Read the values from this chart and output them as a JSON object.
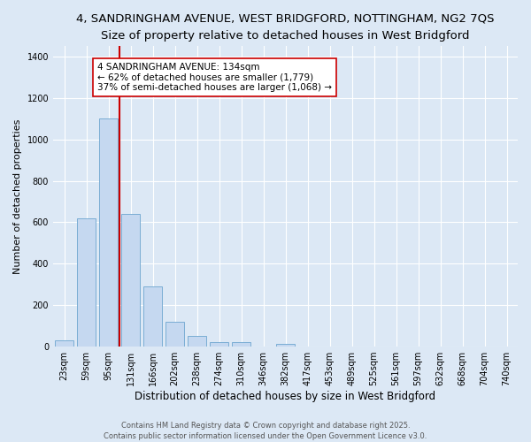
{
  "title1": "4, SANDRINGHAM AVENUE, WEST BRIDGFORD, NOTTINGHAM, NG2 7QS",
  "title2": "Size of property relative to detached houses in West Bridgford",
  "xlabel": "Distribution of detached houses by size in West Bridgford",
  "ylabel": "Number of detached properties",
  "categories": [
    "23sqm",
    "59sqm",
    "95sqm",
    "131sqm",
    "166sqm",
    "202sqm",
    "238sqm",
    "274sqm",
    "310sqm",
    "346sqm",
    "382sqm",
    "417sqm",
    "453sqm",
    "489sqm",
    "525sqm",
    "561sqm",
    "597sqm",
    "632sqm",
    "668sqm",
    "704sqm",
    "740sqm"
  ],
  "values": [
    30,
    620,
    1100,
    640,
    290,
    120,
    50,
    20,
    20,
    0,
    15,
    0,
    0,
    0,
    0,
    0,
    0,
    0,
    0,
    0,
    0
  ],
  "bar_color": "#c5d8f0",
  "bar_edge_color": "#7aadd4",
  "vline_color": "#cc0000",
  "vline_x_index": 3,
  "annotation_text": "4 SANDRINGHAM AVENUE: 134sqm\n← 62% of detached houses are smaller (1,779)\n37% of semi-detached houses are larger (1,068) →",
  "annotation_box_color": "#ffffff",
  "annotation_box_edge": "#cc0000",
  "ylim": [
    0,
    1450
  ],
  "yticks": [
    0,
    200,
    400,
    600,
    800,
    1000,
    1200,
    1400
  ],
  "bg_color": "#dce8f5",
  "plot_bg_color": "#dce8f5",
  "footer1": "Contains HM Land Registry data © Crown copyright and database right 2025.",
  "footer2": "Contains public sector information licensed under the Open Government Licence v3.0.",
  "title1_fontsize": 9.5,
  "title2_fontsize": 9,
  "xlabel_fontsize": 8.5,
  "ylabel_fontsize": 8,
  "tick_fontsize": 7,
  "annotation_fontsize": 7.5,
  "footer_fontsize": 6
}
